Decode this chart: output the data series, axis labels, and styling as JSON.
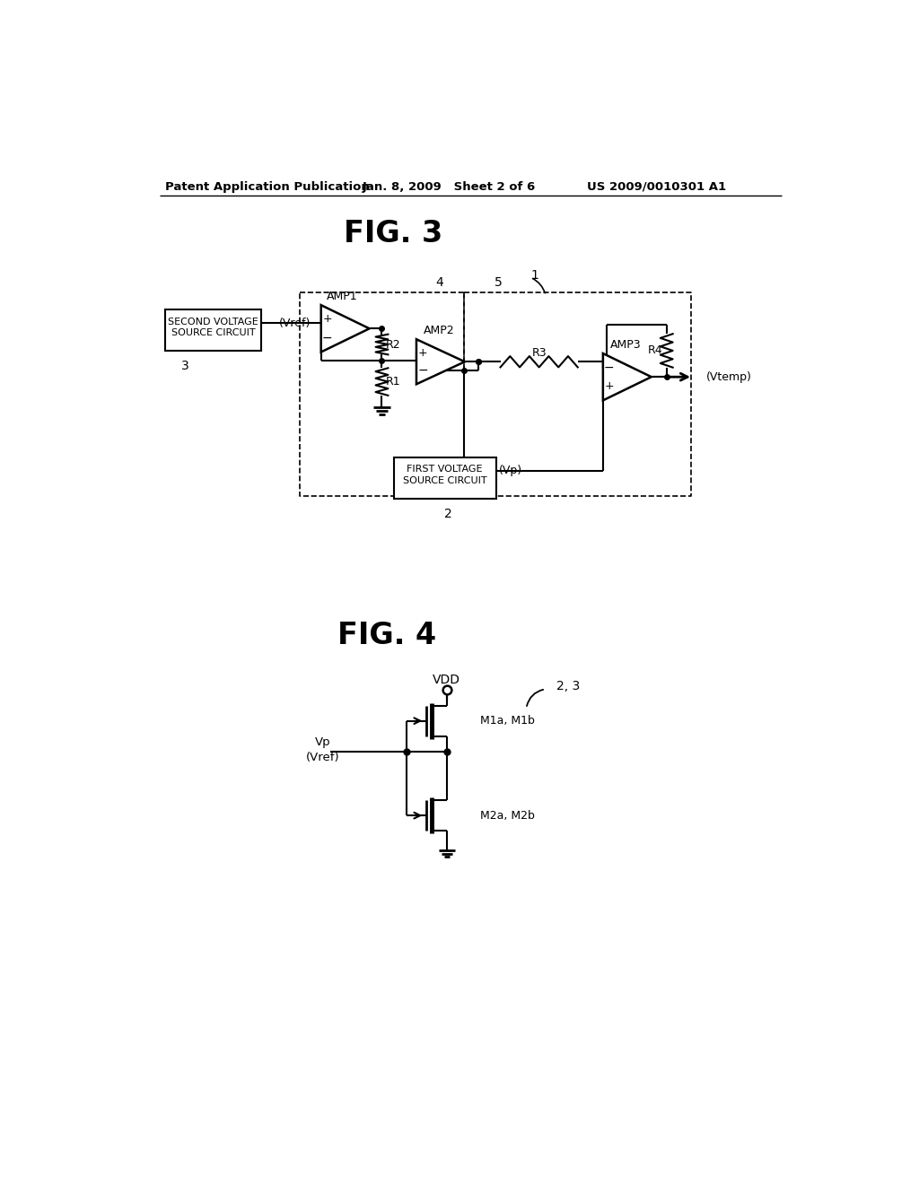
{
  "bg_color": "#ffffff",
  "line_color": "#000000",
  "header_left": "Patent Application Publication",
  "header_center": "Jan. 8, 2009   Sheet 2 of 6",
  "header_right": "US 2009/0010301 A1",
  "fig3_title": "FIG. 3",
  "fig4_title": "FIG. 4"
}
